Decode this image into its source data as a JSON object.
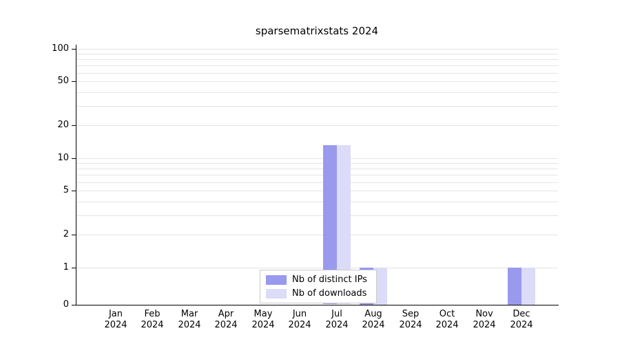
{
  "title": "sparsematrixstats 2024",
  "chart_data": {
    "type": "bar",
    "title": "sparsematrixstats 2024",
    "categories": [
      "Jan 2024",
      "Feb 2024",
      "Mar 2024",
      "Apr 2024",
      "May 2024",
      "Jun 2024",
      "Jul 2024",
      "Aug 2024",
      "Sep 2024",
      "Oct 2024",
      "Nov 2024",
      "Dec 2024"
    ],
    "series": [
      {
        "name": "Nb of distinct IPs",
        "color": "#9999ee",
        "values": [
          0,
          0,
          0,
          0,
          0,
          0,
          13,
          1,
          0,
          0,
          0,
          1
        ]
      },
      {
        "name": "Nb of downloads",
        "color": "#dcdcf8",
        "values": [
          0,
          0,
          0,
          0,
          0,
          0,
          13,
          1,
          0,
          0,
          0,
          1
        ]
      }
    ],
    "xlabel": "",
    "ylabel": "",
    "ylim": [
      0,
      100
    ],
    "yticks": [
      0,
      1,
      2,
      5,
      10,
      20,
      50,
      100
    ],
    "scale": "linear below 1, log10 above 1",
    "grid": true,
    "legend_position": "bottom-center-inside"
  }
}
